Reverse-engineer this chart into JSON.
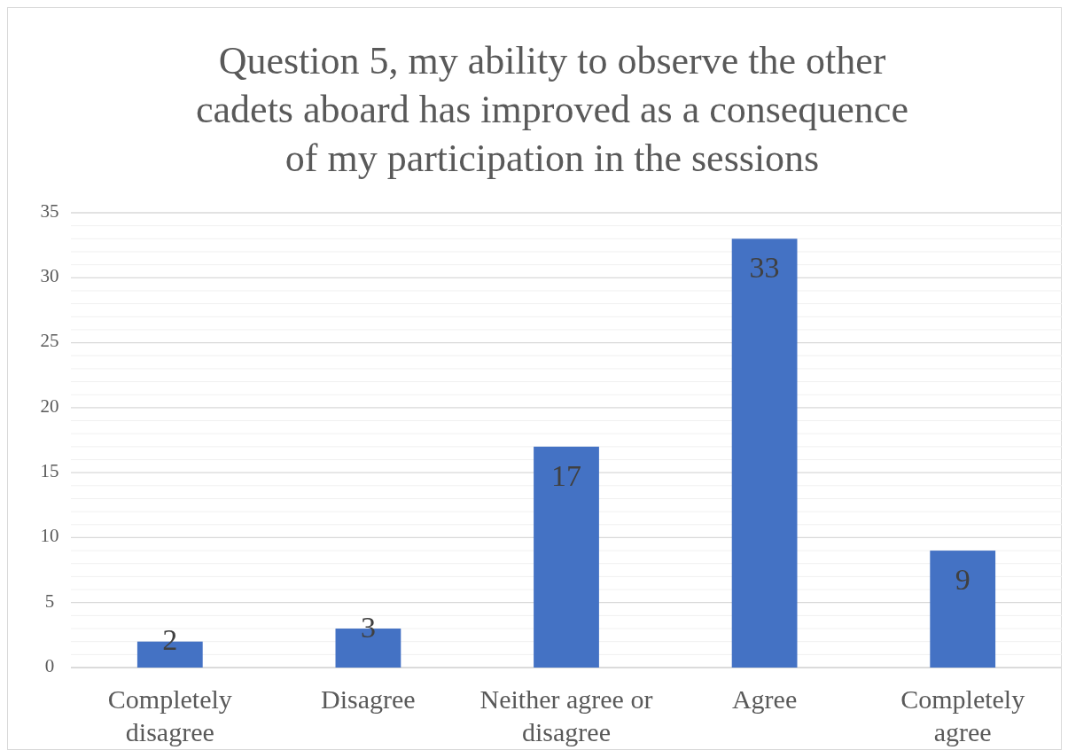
{
  "chart_data": {
    "type": "bar",
    "title": "Question 5, my ability to observe the other cadets aboard has improved as a consequence of my participation in the sessions",
    "categories": [
      "Completely disagree",
      "Disagree",
      "Neither agree or disagree",
      "Agree",
      "Completely agree"
    ],
    "values": [
      2,
      3,
      17,
      33,
      9
    ],
    "color": "#4472c4",
    "data_labels": true,
    "ylim": [
      0,
      35
    ],
    "yticks": [
      0,
      {
        "value": 1,
        "label": null
      },
      {
        "value": 2,
        "label": null
      },
      {
        "value": 3,
        "label": null
      },
      {
        "value": 4,
        "label": null
      },
      5,
      {
        "value": 6,
        "label": null
      },
      {
        "value": 7,
        "label": null
      },
      {
        "value": 8,
        "label": null
      },
      {
        "value": 9,
        "label": null
      },
      10,
      {
        "value": 11,
        "label": null
      },
      {
        "value": 12,
        "label": null
      },
      {
        "value": 13,
        "label": null
      },
      {
        "value": 14,
        "label": null
      },
      15,
      {
        "value": 16,
        "label": null
      },
      {
        "value": 17,
        "label": null
      },
      {
        "value": 18,
        "label": null
      },
      {
        "value": 19,
        "label": null
      },
      20,
      {
        "value": 21,
        "label": null
      },
      {
        "value": 22,
        "label": null
      },
      {
        "value": 23,
        "label": null
      },
      {
        "value": 24,
        "label": null
      },
      25,
      {
        "value": 26,
        "label": null
      },
      {
        "value": 27,
        "label": null
      },
      {
        "value": 28,
        "label": null
      },
      {
        "value": 29,
        "label": null
      },
      30,
      {
        "value": 31,
        "label": null
      },
      {
        "value": 32,
        "label": null
      },
      {
        "value": 33,
        "label": null
      },
      {
        "value": 34,
        "label": null
      },
      35
    ],
    "grid": true
  }
}
